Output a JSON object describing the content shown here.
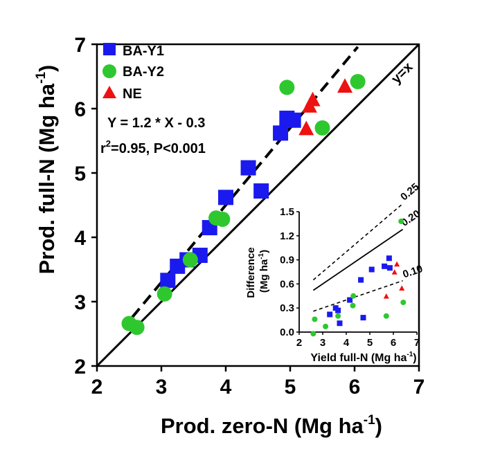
{
  "chart_data": [
    {
      "id": "main",
      "type": "scatter",
      "title": "",
      "xlabel": "Prod. zero-N (Mg ha",
      "xlabel_sup": "-1",
      "xlabel_close": ")",
      "ylabel": "Prod. full-N (Mg ha",
      "ylabel_sup": "-1",
      "ylabel_close": ")",
      "xlim": [
        2,
        7
      ],
      "ylim": [
        2,
        7
      ],
      "xticks": [
        2,
        3,
        4,
        5,
        6,
        7
      ],
      "yticks": [
        2,
        3,
        4,
        5,
        6,
        7
      ],
      "grid": false,
      "legend_position": "top-left",
      "series": [
        {
          "name": "BA-Y1",
          "marker": "square",
          "color": "#1a1aee",
          "points": [
            [
              3.1,
              3.33
            ],
            [
              3.25,
              3.55
            ],
            [
              3.4,
              3.65
            ],
            [
              3.6,
              3.72
            ],
            [
              3.75,
              4.15
            ],
            [
              4.0,
              4.62
            ],
            [
              4.35,
              5.08
            ],
            [
              4.55,
              4.72
            ],
            [
              4.85,
              5.62
            ],
            [
              4.95,
              5.85
            ],
            [
              5.05,
              5.82
            ]
          ]
        },
        {
          "name": "BA-Y2",
          "marker": "circle",
          "color": "#2ec82e",
          "points": [
            [
              2.5,
              2.66
            ],
            [
              2.62,
              2.6
            ],
            [
              3.05,
              3.12
            ],
            [
              3.45,
              3.65
            ],
            [
              3.85,
              4.3
            ],
            [
              3.95,
              4.28
            ],
            [
              4.95,
              6.33
            ],
            [
              5.5,
              5.7
            ],
            [
              6.05,
              6.42
            ]
          ]
        },
        {
          "name": "NE",
          "marker": "triangle",
          "color": "#ee1111",
          "points": [
            [
              5.25,
              5.7
            ],
            [
              5.3,
              6.05
            ],
            [
              5.35,
              6.15
            ],
            [
              5.85,
              6.36
            ]
          ]
        }
      ],
      "lines": [
        {
          "name": "y=x",
          "style": "solid",
          "label": "y=x"
        },
        {
          "name": "fit",
          "style": "dashed",
          "slope": 1.2,
          "intercept": -0.3,
          "x_range": [
            2.55,
            6.05
          ]
        }
      ],
      "annotations": {
        "equation": "Y = 1.2 * X - 0.3",
        "r_prefix": "r",
        "r_sup": "2",
        "r_suffix": "=0.95, P<0.001"
      }
    },
    {
      "id": "inset",
      "type": "scatter",
      "title": "",
      "xlabel": "Yield full-N (Mg ha",
      "xlabel_sup": "-1",
      "xlabel_close": ")",
      "ylabel_line1": "Difference",
      "ylabel_line2": "(Mg ha",
      "ylabel_sup": "-1",
      "ylabel_close": ")",
      "xlim": [
        2,
        7
      ],
      "ylim": [
        0,
        1.5
      ],
      "xticks": [
        2,
        3,
        4,
        5,
        6,
        7
      ],
      "xtick_labels": [
        "2",
        "3",
        "4",
        "5",
        "6",
        "7"
      ],
      "yticks": [
        0,
        0.3,
        0.6,
        0.9,
        1.2,
        1.5
      ],
      "ytick_labels": [
        "0.0",
        "0.3",
        "0.6",
        "0.9",
        "1.2",
        "1.5"
      ],
      "series": [
        {
          "name": "BA-Y1",
          "marker": "square",
          "color": "#1a1aee",
          "points": [
            [
              3.3,
              0.22
            ],
            [
              3.55,
              0.3
            ],
            [
              3.65,
              0.27
            ],
            [
              3.72,
              0.11
            ],
            [
              4.15,
              0.4
            ],
            [
              4.62,
              0.65
            ],
            [
              4.72,
              0.18
            ],
            [
              5.08,
              0.78
            ],
            [
              5.62,
              0.82
            ],
            [
              5.82,
              0.92
            ],
            [
              5.85,
              0.8
            ]
          ]
        },
        {
          "name": "BA-Y2",
          "marker": "circle",
          "color": "#2ec82e",
          "points": [
            [
              2.6,
              -0.02
            ],
            [
              2.66,
              0.16
            ],
            [
              3.12,
              0.07
            ],
            [
              3.65,
              0.2
            ],
            [
              4.28,
              0.33
            ],
            [
              4.3,
              0.45
            ],
            [
              5.7,
              0.2
            ],
            [
              6.33,
              1.38
            ],
            [
              6.42,
              0.37
            ]
          ]
        },
        {
          "name": "NE",
          "marker": "triangle",
          "color": "#ee1111",
          "points": [
            [
              5.7,
              0.45
            ],
            [
              6.05,
              0.75
            ],
            [
              6.15,
              0.85
            ],
            [
              6.36,
              0.55
            ]
          ]
        }
      ],
      "lines": [
        {
          "label": "0.25",
          "style": "dashed",
          "slope": 0.25,
          "x_range": [
            2.6,
            6.4
          ]
        },
        {
          "label": "0.20",
          "style": "solid",
          "slope": 0.2,
          "x_range": [
            2.6,
            6.4
          ]
        },
        {
          "label": "0.10",
          "style": "dashed",
          "slope": 0.1,
          "x_range": [
            2.6,
            6.4
          ]
        }
      ]
    }
  ]
}
